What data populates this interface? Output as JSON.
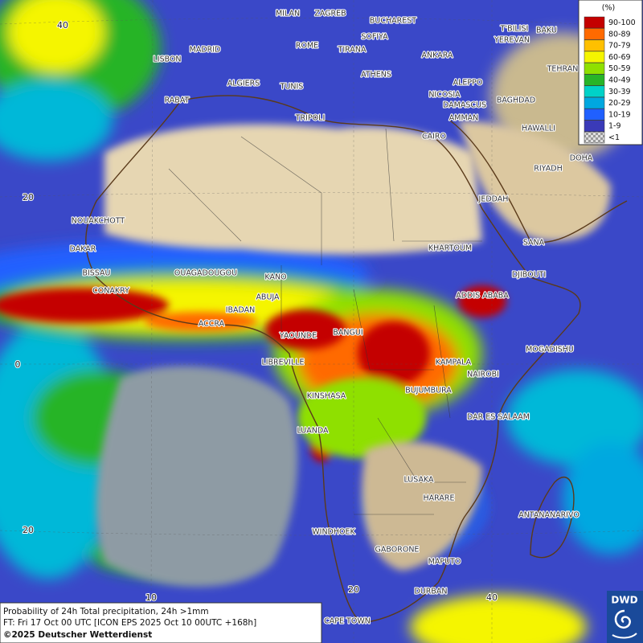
{
  "map": {
    "cities": [
      "MILAN",
      "ZAGREB",
      "BUCHAREST",
      "T'BILISI",
      "BAKU",
      "YEREVAN",
      "ROME",
      "SOFIYA",
      "MADRID",
      "TIRANA",
      "LISBON",
      "ANKARA",
      "TEHRAN",
      "ATHENS",
      "ALGIERS",
      "TUNIS",
      "ALEPPO",
      "NICOSIA",
      "RABAT",
      "BAGHDAD",
      "DAMASCUS",
      "TRIPOLI",
      "AMMAN",
      "HAWALLI",
      "CAIRO",
      "DOHA",
      "RIYADH",
      "JEDDAH",
      "NOUAKCHOTT",
      "KHARTOUM",
      "SANA",
      "DAKAR",
      "BISSAU",
      "OUAGADOUGOU",
      "DJIBOUTI",
      "KANO",
      "CONAKRY",
      "ADDIS ABABA",
      "ABUJA",
      "IBADAN",
      "ACCRA",
      "BANGUI",
      "YAOUNDE",
      "MOGADISHU",
      "LIBREVILLE",
      "KAMPALA",
      "NAIROBI",
      "BUJUMBURA",
      "KINSHASA",
      "DAR ES SALAAM",
      "LUANDA",
      "LUSAKA",
      "HARARE",
      "ANTANANARIVO",
      "WINDHOEK",
      "GABORONE",
      "MAPUTO",
      "DURBAN",
      "CAPE TOWN"
    ],
    "lat_labels": [
      "40",
      "20",
      "0",
      "20"
    ],
    "lon_labels": [
      "10",
      "20",
      "40"
    ]
  },
  "legend": {
    "title": "(%)",
    "entries": [
      {
        "label": "90-100",
        "color": "#c40000"
      },
      {
        "label": "80-89",
        "color": "#ff6a00"
      },
      {
        "label": "70-79",
        "color": "#ffc000"
      },
      {
        "label": "60-69",
        "color": "#f5f500"
      },
      {
        "label": "50-59",
        "color": "#8fe000"
      },
      {
        "label": "40-49",
        "color": "#28b428"
      },
      {
        "label": "30-39",
        "color": "#00d2c8"
      },
      {
        "label": "20-29",
        "color": "#00a8e0"
      },
      {
        "label": "10-19",
        "color": "#2060ff"
      },
      {
        "label": "1-9",
        "color": "#3a3ab8"
      },
      {
        "label": "<1",
        "color": "#bdbdbd"
      }
    ]
  },
  "footer": {
    "lines": [
      "Probability of 24h Total precipitation, 24h >1mm",
      "FT: Fri 17 Oct 00 UTC [ICON EPS 2025 Oct 10 00UTC +168h]",
      "©2025 Deutscher Wetterdienst"
    ]
  },
  "logo": "DWD"
}
